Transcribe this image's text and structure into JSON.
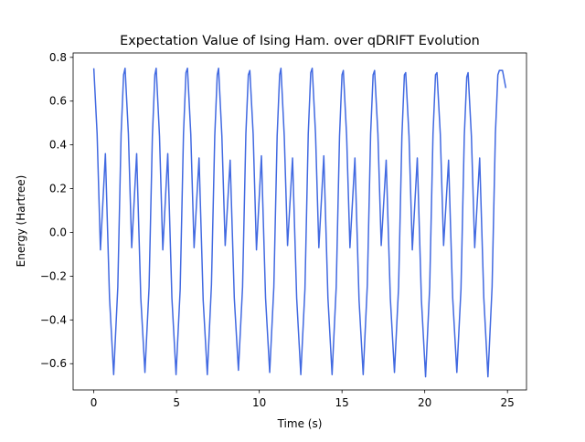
{
  "chart_data": {
    "type": "line",
    "title": "Expectation Value of Ising Ham. over qDRIFT Evolution",
    "x_label": "Time (s)",
    "y_label": "Energy (Hartree)",
    "x": [
      0,
      0.2,
      0.4,
      0.7,
      0.95,
      1.2,
      1.45,
      1.65,
      1.8,
      1.89,
      2.09,
      2.29,
      2.59,
      2.84,
      3.09,
      3.34,
      3.54,
      3.69,
      3.77,
      3.97,
      4.17,
      4.47,
      4.72,
      4.97,
      5.22,
      5.42,
      5.57,
      5.66,
      5.86,
      6.06,
      6.36,
      6.61,
      6.86,
      7.11,
      7.31,
      7.46,
      7.54,
      7.74,
      7.94,
      8.24,
      8.49,
      8.74,
      8.99,
      9.19,
      9.34,
      9.43,
      9.63,
      9.83,
      10.13,
      10.38,
      10.63,
      10.88,
      11.08,
      11.23,
      11.31,
      11.51,
      11.71,
      12.01,
      12.26,
      12.51,
      12.76,
      12.96,
      13.11,
      13.2,
      13.4,
      13.6,
      13.9,
      14.15,
      14.4,
      14.65,
      14.85,
      15.0,
      15.08,
      15.28,
      15.48,
      15.78,
      16.03,
      16.28,
      16.53,
      16.73,
      16.88,
      16.97,
      17.17,
      17.37,
      17.67,
      17.92,
      18.17,
      18.42,
      18.62,
      18.77,
      18.85,
      19.05,
      19.25,
      19.55,
      19.8,
      20.05,
      20.3,
      20.5,
      20.65,
      20.74,
      20.94,
      21.14,
      21.44,
      21.69,
      21.94,
      22.19,
      22.39,
      22.54,
      22.62,
      22.82,
      23.02,
      23.32,
      23.57,
      23.82,
      24.07,
      24.27,
      24.42,
      24.51,
      24.7,
      24.9
    ],
    "series": [
      {
        "name": "Energy",
        "color": "#4169e1",
        "values": [
          0.75,
          0.45,
          -0.08,
          0.36,
          -0.3,
          -0.65,
          -0.25,
          0.45,
          0.72,
          0.75,
          0.45,
          -0.07,
          0.36,
          -0.3,
          -0.64,
          -0.25,
          0.44,
          0.72,
          0.75,
          0.44,
          -0.08,
          0.36,
          -0.3,
          -0.65,
          -0.26,
          0.45,
          0.73,
          0.75,
          0.45,
          -0.07,
          0.34,
          -0.31,
          -0.65,
          -0.24,
          0.44,
          0.72,
          0.75,
          0.44,
          -0.06,
          0.33,
          -0.3,
          -0.63,
          -0.25,
          0.45,
          0.72,
          0.74,
          0.45,
          -0.08,
          0.35,
          -0.3,
          -0.64,
          -0.25,
          0.44,
          0.72,
          0.75,
          0.44,
          -0.06,
          0.34,
          -0.3,
          -0.65,
          -0.26,
          0.45,
          0.73,
          0.75,
          0.45,
          -0.07,
          0.35,
          -0.3,
          -0.65,
          -0.25,
          0.44,
          0.72,
          0.74,
          0.44,
          -0.07,
          0.34,
          -0.31,
          -0.65,
          -0.24,
          0.45,
          0.72,
          0.74,
          0.45,
          -0.06,
          0.33,
          -0.3,
          -0.64,
          -0.25,
          0.44,
          0.72,
          0.73,
          0.44,
          -0.08,
          0.34,
          -0.31,
          -0.66,
          -0.25,
          0.45,
          0.72,
          0.73,
          0.45,
          -0.06,
          0.33,
          -0.3,
          -0.64,
          -0.26,
          0.44,
          0.71,
          0.73,
          0.44,
          -0.07,
          0.34,
          -0.3,
          -0.66,
          -0.25,
          0.45,
          0.72,
          0.74,
          0.74,
          0.66
        ]
      }
    ],
    "xlim": [
      -1.25,
      26.15
    ],
    "xticks": [
      0,
      5,
      10,
      15,
      20,
      25
    ],
    "ylim": [
      -0.72,
      0.82
    ],
    "yticks": [
      {
        "value": -0.6,
        "label": "−0.6"
      },
      {
        "value": -0.4,
        "label": "−0.4"
      },
      {
        "value": -0.2,
        "label": "−0.2"
      },
      {
        "value": 0,
        "label": "0.0"
      },
      {
        "value": 0.2,
        "label": "0.2"
      },
      {
        "value": 0.4,
        "label": "0.4"
      },
      {
        "value": 0.6,
        "label": "0.6"
      },
      {
        "value": 0.8,
        "label": "0.8"
      }
    ]
  }
}
